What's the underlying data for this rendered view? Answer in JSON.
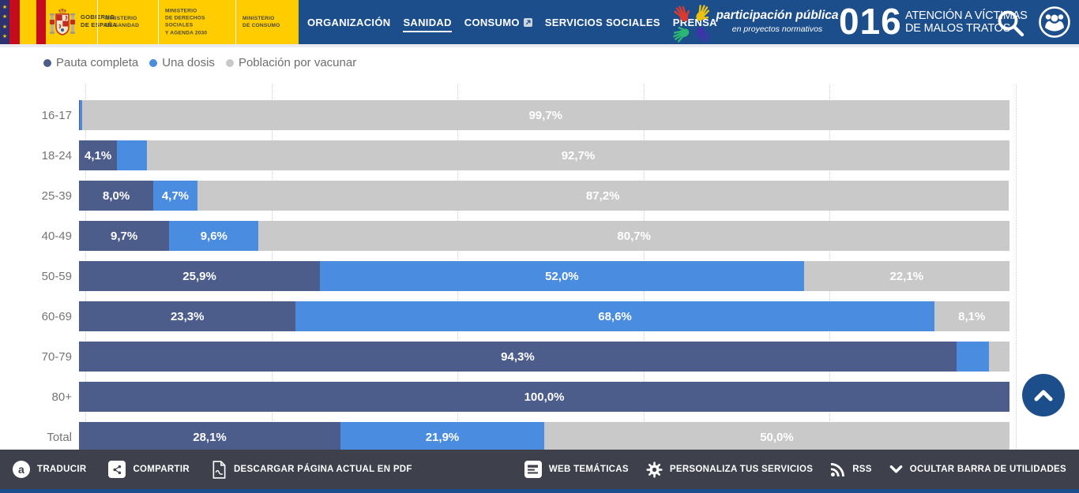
{
  "header": {
    "gobierno": [
      "GOBIERNO",
      "DE ESPAÑA"
    ],
    "ministries": [
      [
        "MINISTERIO",
        "DE SANIDAD"
      ],
      [
        "MINISTERIO",
        "DE DERECHOS SOCIALES",
        "Y AGENDA 2030"
      ],
      [
        "MINISTERIO",
        "DE CONSUMO"
      ]
    ],
    "nav": [
      {
        "label": "ORGANIZACIÓN"
      },
      {
        "label": "SANIDAD"
      },
      {
        "label": "CONSUMO"
      },
      {
        "label": "SERVICIOS SOCIALES"
      },
      {
        "label": "PRENSA"
      }
    ],
    "participacion_title": "participación pública",
    "participacion_subtitle": "en proyectos normativos",
    "hotline_number": "016",
    "hotline_line1": "ATENCIÓN A VÍCTIMAS",
    "hotline_line2": "DE MALOS TRATOS"
  },
  "legend": [
    {
      "label": "Pauta completa",
      "color": "#4c5d8b"
    },
    {
      "label": "Una dosis",
      "color": "#4a8cdf"
    },
    {
      "label": "Población por vacunar",
      "color": "#c9c9c9"
    }
  ],
  "chart_data": {
    "type": "bar",
    "orientation": "horizontal-stacked",
    "title": "",
    "xlabel": "",
    "ylabel": "Grupo de edad",
    "xlim": [
      0,
      100
    ],
    "gridline_step": 20,
    "grid": "dotted-vertical",
    "legend_position": "top",
    "categories": [
      "16-17",
      "18-24",
      "25-39",
      "40-49",
      "50-59",
      "60-69",
      "70-79",
      "80+",
      "Total"
    ],
    "series": [
      {
        "name": "Pauta completa",
        "color": "#4c5d8b",
        "values": [
          0.1,
          4.1,
          8.0,
          9.7,
          25.9,
          23.3,
          94.3,
          100.0,
          28.1
        ],
        "labels": [
          "",
          "4,1%",
          "8,0%",
          "9,7%",
          "25,9%",
          "23,3%",
          "94,3%",
          "100,0%",
          "28,1%"
        ]
      },
      {
        "name": "Una dosis",
        "color": "#4a8cdf",
        "values": [
          0.2,
          3.2,
          4.7,
          9.6,
          52.0,
          68.6,
          3.5,
          0.0,
          21.9
        ],
        "labels": [
          "",
          "",
          "4,7%",
          "9,6%",
          "52,0%",
          "68,6%",
          "",
          "",
          "21,9%"
        ]
      },
      {
        "name": "Población por vacunar",
        "color": "#c9c9c9",
        "values": [
          99.7,
          92.7,
          87.2,
          80.7,
          22.1,
          8.1,
          2.2,
          0.0,
          50.0
        ],
        "labels": [
          "99,7%",
          "92,7%",
          "87,2%",
          "80,7%",
          "22,1%",
          "8,1%",
          "",
          "",
          "50,0%"
        ]
      }
    ]
  },
  "toolbar": {
    "left": [
      {
        "label": "TRADUCIR",
        "icon": "translate-icon"
      },
      {
        "label": "COMPARTIR",
        "icon": "share-icon"
      },
      {
        "label": "DESCARGAR PÁGINA ACTUAL EN PDF",
        "icon": "pdf-icon"
      }
    ],
    "right": [
      {
        "label": "WEB TEMÁTICAS",
        "icon": "list-icon"
      },
      {
        "label": "PERSONALIZA TUS SERVICIOS",
        "icon": "gear-icon"
      },
      {
        "label": "RSS",
        "icon": "rss-icon"
      },
      {
        "label": "OCULTAR BARRA DE UTILIDADES",
        "icon": "chevron-down-icon"
      }
    ]
  },
  "colors": {
    "header_navy": "#1d4e8c",
    "header_yellow": "#ffcc00",
    "toolbar_bg": "#3e404b",
    "scroll_button": "#1d4e8c"
  }
}
